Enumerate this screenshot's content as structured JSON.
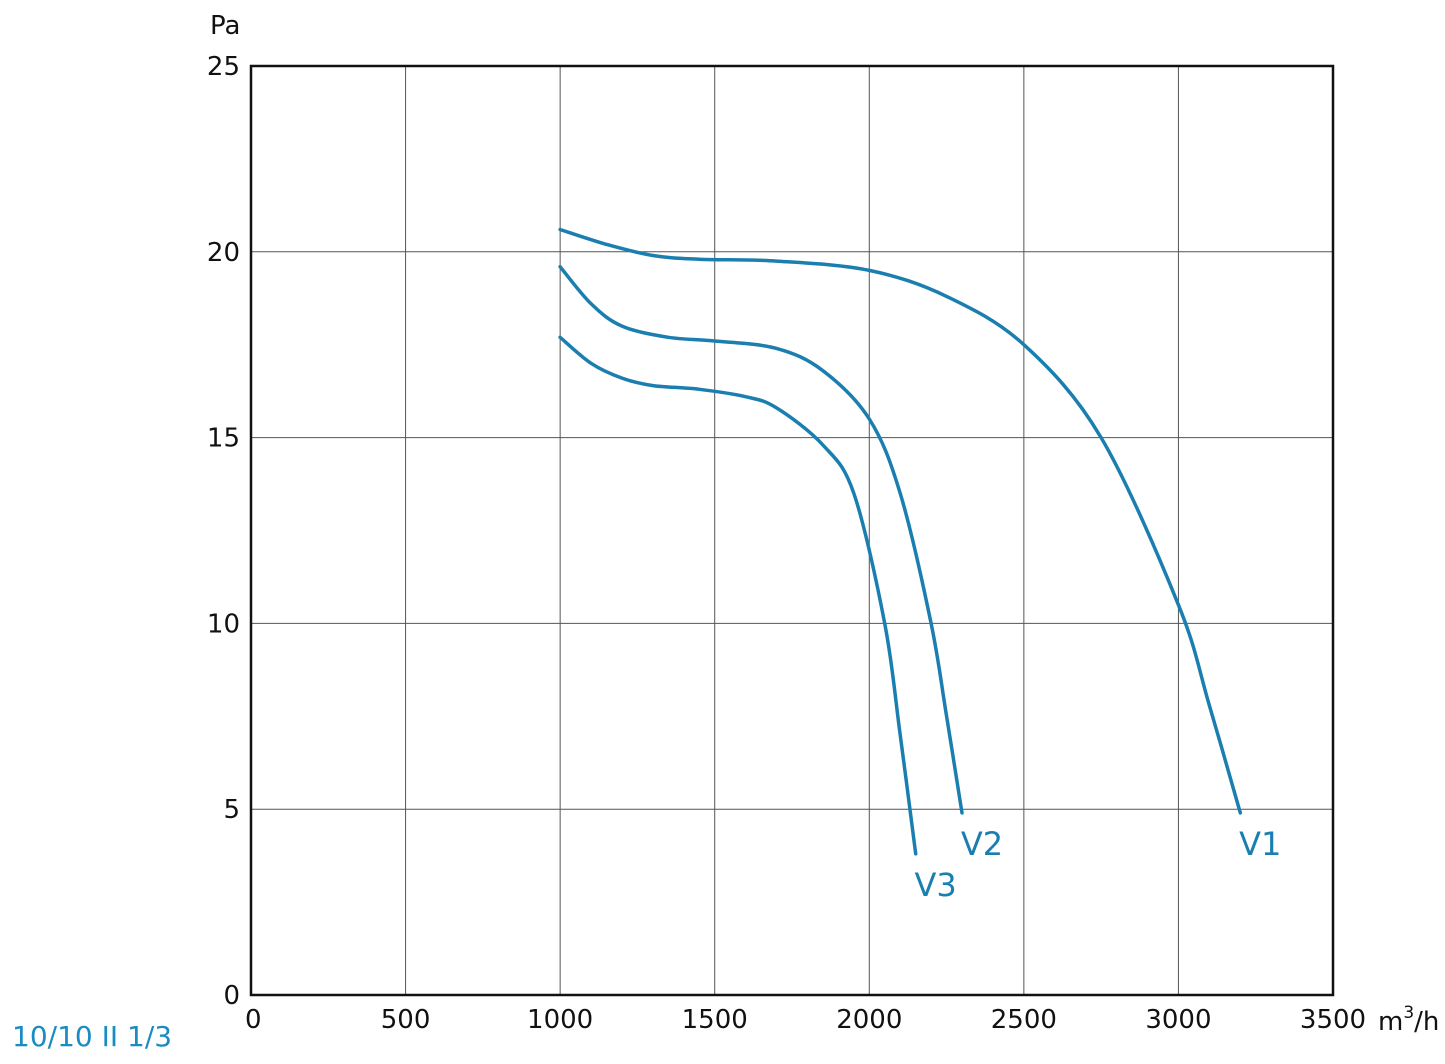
{
  "model_code": "10/10 II 1/3",
  "colors": {
    "series": "#1a7fb0",
    "grid": "#555555",
    "axis": "#111111",
    "model_code": "#1a8cc4"
  },
  "chart_data": {
    "type": "line",
    "title": "",
    "xlabel": "m³/h",
    "ylabel": "Pa",
    "xlim": [
      0,
      3500
    ],
    "ylim": [
      0,
      25
    ],
    "x_ticks": [
      "0",
      "500",
      "1000",
      "1500",
      "2000",
      "2500",
      "3000",
      "3500"
    ],
    "y_ticks": [
      "0",
      "5",
      "10",
      "15",
      "20",
      "25"
    ],
    "grid": true,
    "series": [
      {
        "name": "V1",
        "x": [
          1000,
          1150,
          1300,
          1450,
          1700,
          2000,
          2250,
          2500,
          2750,
          3000,
          3100,
          3200
        ],
        "y": [
          20.6,
          20.2,
          19.9,
          19.8,
          19.75,
          19.5,
          18.8,
          17.5,
          15,
          10.5,
          7.8,
          4.9
        ]
      },
      {
        "name": "V2",
        "x": [
          1000,
          1100,
          1200,
          1350,
          1500,
          1700,
          1850,
          2000,
          2100,
          2200,
          2250,
          2300
        ],
        "y": [
          19.6,
          18.6,
          18,
          17.7,
          17.6,
          17.4,
          16.8,
          15.5,
          13.5,
          10,
          7.5,
          4.9
        ]
      },
      {
        "name": "V3",
        "x": [
          1000,
          1100,
          1200,
          1300,
          1450,
          1600,
          1700,
          1850,
          1950,
          2050,
          2100,
          2150
        ],
        "y": [
          17.7,
          17,
          16.6,
          16.4,
          16.3,
          16.1,
          15.8,
          14.8,
          13.5,
          10,
          7,
          3.8
        ]
      }
    ]
  }
}
